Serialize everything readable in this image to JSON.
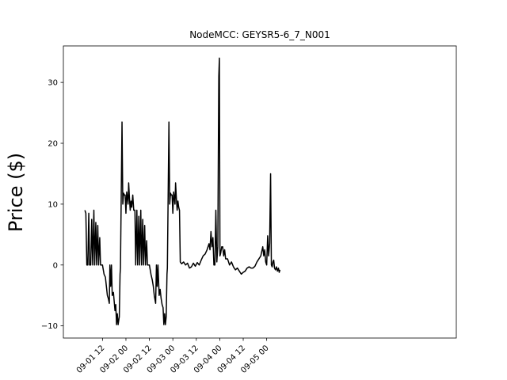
{
  "chart_data": {
    "type": "line",
    "title": "NodeMCC: GEYSR5-6_7_N001",
    "xlabel": "",
    "ylabel": "Price ($)",
    "x_unit": "hours",
    "xlim_hours": [
      -8.0,
      193.0
    ],
    "ylim": [
      -12.0,
      36.0
    ],
    "grid": false,
    "legend": "none",
    "yticks": [
      -10,
      0,
      10,
      20,
      30
    ],
    "xticks": [
      {
        "hours": 12,
        "label": "09-01 12"
      },
      {
        "hours": 24,
        "label": "09-02 00"
      },
      {
        "hours": 36,
        "label": "09-02 12"
      },
      {
        "hours": 48,
        "label": "09-03 00"
      },
      {
        "hours": 60,
        "label": "09-03 12"
      },
      {
        "hours": 72,
        "label": "09-04 00"
      },
      {
        "hours": 84,
        "label": "09-04 12"
      },
      {
        "hours": 96,
        "label": "09-05 00"
      }
    ],
    "series": [
      {
        "name": "",
        "color": "#000000",
        "points": [
          [
            3.0,
            9.0
          ],
          [
            3.5,
            8.5
          ],
          [
            4.0,
            0.0
          ],
          [
            4.5,
            0.0
          ],
          [
            5.0,
            8.5
          ],
          [
            5.4,
            0.0
          ],
          [
            6.0,
            0.0
          ],
          [
            6.5,
            7.5
          ],
          [
            7.0,
            0.0
          ],
          [
            7.6,
            9.0
          ],
          [
            8.0,
            0.0
          ],
          [
            8.6,
            7.0
          ],
          [
            9.0,
            0.0
          ],
          [
            9.6,
            6.5
          ],
          [
            10.0,
            0.0
          ],
          [
            10.6,
            4.5
          ],
          [
            11.0,
            0.0
          ],
          [
            12.0,
            0.0
          ],
          [
            12.8,
            -1.5
          ],
          [
            13.5,
            -2.0
          ],
          [
            14.0,
            -3.5
          ],
          [
            14.5,
            -5.0
          ],
          [
            15.0,
            -5.5
          ],
          [
            15.5,
            -6.3
          ],
          [
            15.8,
            0.0
          ],
          [
            16.2,
            -3.5
          ],
          [
            16.6,
            0.0
          ],
          [
            17.0,
            -5.0
          ],
          [
            17.6,
            -4.5
          ],
          [
            18.0,
            -6.0
          ],
          [
            18.4,
            -7.5
          ],
          [
            18.8,
            -6.5
          ],
          [
            19.2,
            -9.8
          ],
          [
            19.6,
            -8.0
          ],
          [
            20.0,
            -9.8
          ],
          [
            20.6,
            -8.5
          ],
          [
            21.0,
            -1.5
          ],
          [
            21.2,
            -0.5
          ],
          [
            22.0,
            23.5
          ],
          [
            22.4,
            10.0
          ],
          [
            22.8,
            11.8
          ],
          [
            23.2,
            11.5
          ],
          [
            23.6,
            11.5
          ],
          [
            24.0,
            8.5
          ],
          [
            24.4,
            12.0
          ],
          [
            24.8,
            11.0
          ],
          [
            25.1,
            10.0
          ],
          [
            25.4,
            13.5
          ],
          [
            25.8,
            11.0
          ],
          [
            26.2,
            9.0
          ],
          [
            26.6,
            10.5
          ],
          [
            27.0,
            9.5
          ],
          [
            27.5,
            11.5
          ],
          [
            28.0,
            9.0
          ],
          [
            28.6,
            9.0
          ],
          [
            29.0,
            0.0
          ],
          [
            29.6,
            9.0
          ],
          [
            30.0,
            0.0
          ],
          [
            30.6,
            8.0
          ],
          [
            31.0,
            0.0
          ],
          [
            31.6,
            9.0
          ],
          [
            32.0,
            0.0
          ],
          [
            32.6,
            7.5
          ],
          [
            33.0,
            0.0
          ],
          [
            33.6,
            6.5
          ],
          [
            34.0,
            0.0
          ],
          [
            34.6,
            4.0
          ],
          [
            35.0,
            0.0
          ],
          [
            36.0,
            0.0
          ],
          [
            36.8,
            -1.5
          ],
          [
            37.5,
            -2.5
          ],
          [
            38.0,
            -3.5
          ],
          [
            38.5,
            -5.0
          ],
          [
            39.2,
            -6.3
          ],
          [
            39.6,
            0.0
          ],
          [
            40.0,
            -3.5
          ],
          [
            40.4,
            0.0
          ],
          [
            41.0,
            -5.0
          ],
          [
            41.5,
            -4.0
          ],
          [
            42.0,
            -5.5
          ],
          [
            42.5,
            -6.5
          ],
          [
            43.0,
            -7.0
          ],
          [
            43.4,
            -9.8
          ],
          [
            43.8,
            -8.0
          ],
          [
            44.2,
            -9.8
          ],
          [
            44.6,
            -8.5
          ],
          [
            45.0,
            -1.5
          ],
          [
            45.2,
            -0.5
          ],
          [
            46.0,
            23.5
          ],
          [
            46.4,
            10.0
          ],
          [
            46.8,
            11.8
          ],
          [
            47.2,
            11.5
          ],
          [
            47.6,
            11.5
          ],
          [
            48.0,
            8.5
          ],
          [
            48.4,
            12.0
          ],
          [
            48.8,
            11.0
          ],
          [
            49.1,
            10.0
          ],
          [
            49.4,
            13.5
          ],
          [
            49.8,
            11.0
          ],
          [
            50.2,
            9.0
          ],
          [
            50.6,
            10.5
          ],
          [
            51.0,
            9.5
          ],
          [
            51.4,
            9.0
          ],
          [
            51.8,
            0.5
          ],
          [
            52.5,
            0.2
          ],
          [
            53.5,
            0.5
          ],
          [
            54.5,
            0.0
          ],
          [
            55.5,
            0.3
          ],
          [
            56.5,
            -0.5
          ],
          [
            57.5,
            -0.3
          ],
          [
            58.5,
            0.3
          ],
          [
            59.5,
            -0.2
          ],
          [
            60.5,
            0.4
          ],
          [
            61.5,
            0.0
          ],
          [
            62.5,
            0.8
          ],
          [
            63.5,
            1.5
          ],
          [
            64.5,
            1.8
          ],
          [
            65.5,
            2.5
          ],
          [
            66.5,
            3.5
          ],
          [
            67.0,
            2.5
          ],
          [
            67.5,
            5.5
          ],
          [
            68.0,
            3.0
          ],
          [
            68.5,
            4.5
          ],
          [
            69.0,
            0.0
          ],
          [
            69.5,
            0.0
          ],
          [
            70.0,
            9.0
          ],
          [
            70.5,
            0.5
          ],
          [
            71.0,
            3.0
          ],
          [
            71.5,
            31.0
          ],
          [
            71.8,
            34.0
          ],
          [
            72.1,
            1.5
          ],
          [
            72.5,
            2.0
          ],
          [
            73.0,
            3.0
          ],
          [
            73.5,
            3.0
          ],
          [
            74.0,
            1.5
          ],
          [
            74.5,
            2.5
          ],
          [
            75.0,
            1.0
          ],
          [
            76.0,
            1.0
          ],
          [
            77.0,
            0.0
          ],
          [
            78.0,
            0.5
          ],
          [
            79.0,
            -0.3
          ],
          [
            80.0,
            -0.8
          ],
          [
            81.0,
            -0.5
          ],
          [
            82.0,
            -1.0
          ],
          [
            83.0,
            -1.5
          ],
          [
            84.0,
            -1.2
          ],
          [
            85.0,
            -1.0
          ],
          [
            86.0,
            -0.5
          ],
          [
            87.0,
            -0.3
          ],
          [
            88.0,
            -0.5
          ],
          [
            89.0,
            -0.5
          ],
          [
            90.0,
            -0.2
          ],
          [
            91.0,
            0.5
          ],
          [
            92.0,
            1.0
          ],
          [
            93.0,
            1.5
          ],
          [
            94.0,
            3.0
          ],
          [
            94.5,
            1.5
          ],
          [
            95.0,
            2.5
          ],
          [
            95.5,
            0.5
          ],
          [
            96.0,
            0.0
          ],
          [
            96.5,
            4.8
          ],
          [
            97.0,
            1.5
          ],
          [
            97.5,
            3.5
          ],
          [
            98.0,
            15.0
          ],
          [
            98.4,
            0.0
          ],
          [
            98.8,
            -0.3
          ],
          [
            99.2,
            0.5
          ],
          [
            99.6,
            0.8
          ],
          [
            100.0,
            -0.5
          ],
          [
            100.5,
            -0.8
          ],
          [
            101.0,
            -0.3
          ],
          [
            101.5,
            -1.0
          ],
          [
            102.0,
            -0.5
          ],
          [
            102.4,
            -1.2
          ],
          [
            102.8,
            -0.8
          ]
        ]
      }
    ]
  }
}
